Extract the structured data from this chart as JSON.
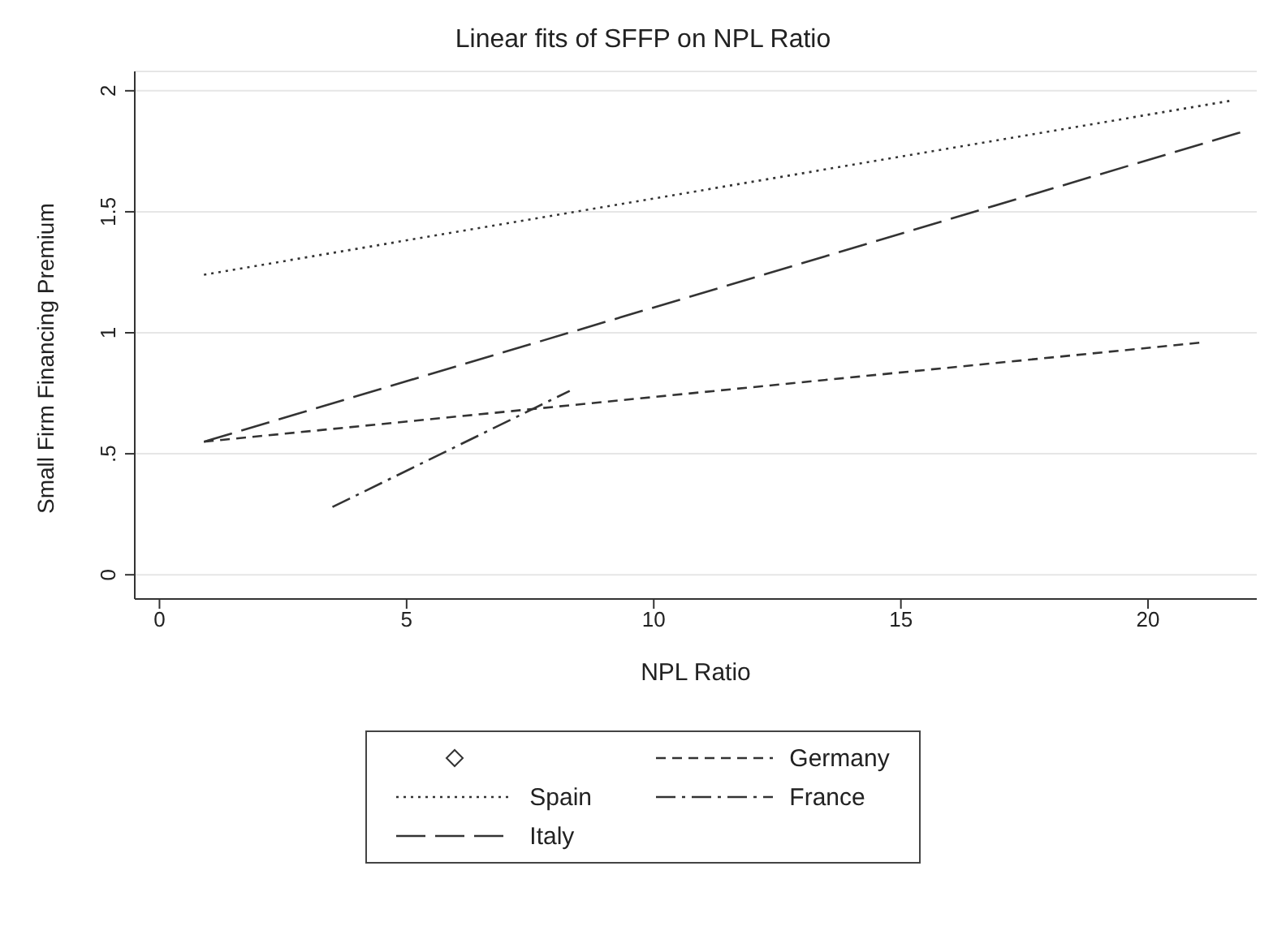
{
  "chart_data": {
    "type": "line",
    "title": "Linear fits of SFFP on NPL Ratio",
    "xlabel": "NPL Ratio",
    "ylabel": "Small Firm Financing Premium",
    "xlim": [
      -0.5,
      22.2
    ],
    "xticks": [
      0,
      5,
      10,
      15,
      20
    ],
    "ylim": [
      -0.1,
      2.08
    ],
    "yticks": [
      0,
      {
        "value": 0.5,
        "label": ".5"
      },
      1,
      1.5,
      2
    ],
    "grid": "y",
    "legend": "bottom",
    "marker": "none",
    "series": [
      {
        "name": "Germany",
        "color": "#333333",
        "line_style": "dashed",
        "x": [
          0.9,
          21.1
        ],
        "values": [
          0.55,
          0.96
        ]
      },
      {
        "name": "Spain",
        "color": "#333333",
        "line_style": "dotted",
        "x": [
          0.9,
          21.7
        ],
        "values": [
          1.24,
          1.96
        ]
      },
      {
        "name": "France",
        "color": "#333333",
        "line_style": "dashdot",
        "x": [
          3.5,
          8.3
        ],
        "values": [
          0.28,
          0.76
        ]
      },
      {
        "name": "Italy",
        "color": "#333333",
        "line_style": "longdash",
        "x": [
          0.9,
          21.9
        ],
        "values": [
          0.55,
          1.83
        ]
      }
    ]
  }
}
